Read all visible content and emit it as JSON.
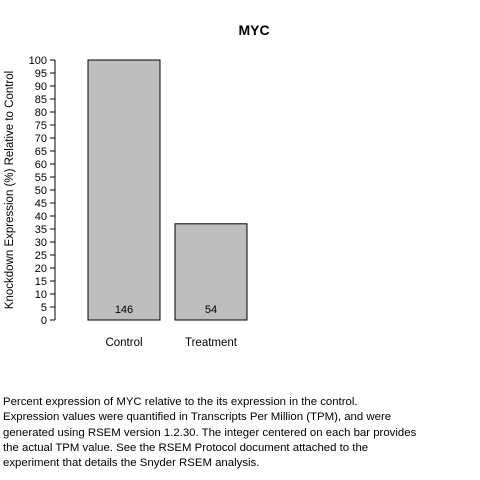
{
  "chart_data": {
    "type": "bar",
    "title": "MYC",
    "xlabel": "",
    "ylabel": "Knockdown Expression (%) Relative to Control",
    "categories": [
      "Control",
      "Treatment"
    ],
    "values": [
      100,
      37
    ],
    "bar_labels": [
      "146",
      "54"
    ],
    "ylim": [
      0,
      100
    ],
    "yticks": [
      "0",
      "5",
      "10",
      "15",
      "20",
      "25",
      "30",
      "35",
      "40",
      "45",
      "50",
      "55",
      "60",
      "65",
      "70",
      "75",
      "80",
      "85",
      "90",
      "95",
      "100"
    ],
    "grid": false,
    "legend": "none",
    "bar_color": "#bebebe",
    "bar_edge_color": "#000000"
  },
  "caption": {
    "lines": [
      "Percent expression of MYC relative to the its expression in the control.",
      "Expression values were quantified in Transcripts Per Million (TPM), and were",
      "generated using RSEM version 1.2.30. The integer centered on each bar provides",
      "the actual TPM value. See the RSEM Protocol document attached to the",
      "experiment that details the Snyder RSEM analysis."
    ]
  }
}
